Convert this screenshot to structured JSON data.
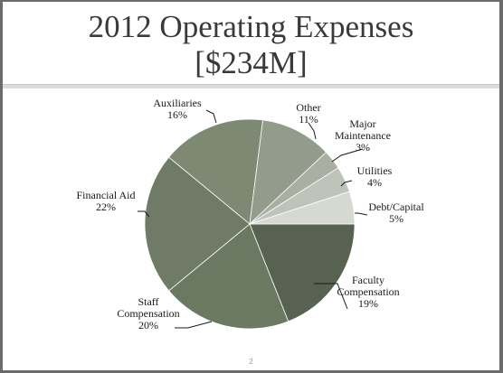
{
  "slide": {
    "title_line1": "2012 Operating Expenses",
    "title_line2": "[$234M]",
    "page_number": "2"
  },
  "chart_data": {
    "type": "pie",
    "title": "2012 Operating Expenses [$234M]",
    "start_angle_deg": 0,
    "direction": "clockwise",
    "slices": [
      {
        "label_lines": [
          "Faculty",
          "Compensation"
        ],
        "percent_label": "19%",
        "value": 19,
        "color": "#586250"
      },
      {
        "label_lines": [
          "Staff",
          "Compensation"
        ],
        "percent_label": "20%",
        "value": 20,
        "color": "#6b7862"
      },
      {
        "label_lines": [
          "Financial Aid"
        ],
        "percent_label": "22%",
        "value": 22,
        "color": "#6f7b66"
      },
      {
        "label_lines": [
          "Auxiliaries"
        ],
        "percent_label": "16%",
        "value": 16,
        "color": "#7d8973"
      },
      {
        "label_lines": [
          "Other"
        ],
        "percent_label": "11%",
        "value": 11,
        "color": "#939c8a"
      },
      {
        "label_lines": [
          "Major",
          "Maintenance"
        ],
        "percent_label": "3%",
        "value": 3,
        "color": "#a9afa3"
      },
      {
        "label_lines": [
          "Utilities"
        ],
        "percent_label": "4%",
        "value": 4,
        "color": "#bfc4ba"
      },
      {
        "label_lines": [
          "Debt/Capital"
        ],
        "percent_label": "5%",
        "value": 5,
        "color": "#d6d9d2"
      }
    ]
  }
}
